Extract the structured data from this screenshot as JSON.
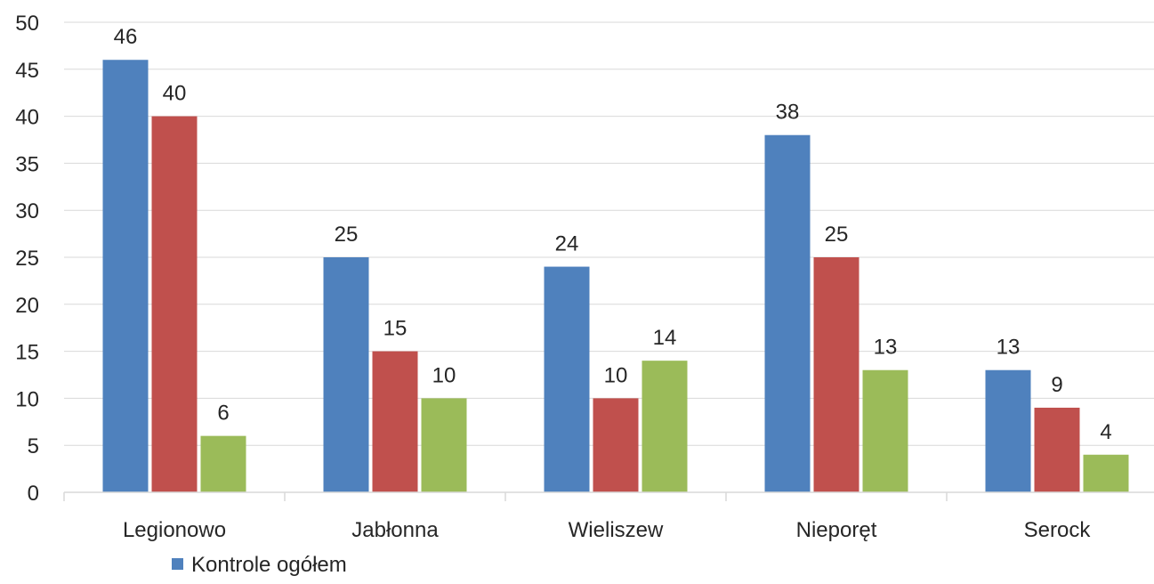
{
  "chart_data": {
    "type": "bar",
    "title": "",
    "xlabel": "",
    "ylabel": "",
    "categories": [
      "Legionowo",
      "Jabłonna",
      "Wieliszew",
      "Nieporęt",
      "Serock"
    ],
    "series": [
      {
        "name": "Kontrole ogółem",
        "color": "#4F81BD",
        "values": [
          46,
          25,
          24,
          38,
          13
        ]
      },
      {
        "color": "#C0504D",
        "values": [
          40,
          15,
          10,
          25,
          9
        ]
      },
      {
        "color": "#9BBB59",
        "values": [
          6,
          10,
          14,
          13,
          4
        ]
      }
    ],
    "ylim": [
      0,
      50
    ],
    "yticks": [
      0,
      5,
      10,
      15,
      20,
      25,
      30,
      35,
      40,
      45,
      50
    ],
    "grid": true,
    "data_labels": true,
    "legend_position": "bottom"
  }
}
